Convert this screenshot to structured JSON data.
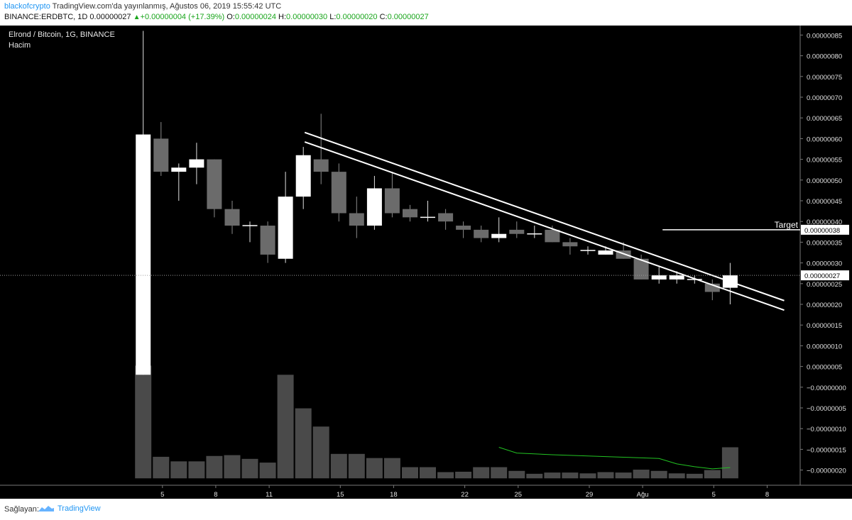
{
  "header": {
    "author": "blackofcrypto",
    "published": "TradingView.com'da yayınlanmış, Ağustos 06, 2019 15:55:42 UTC",
    "symbol": "BINANCE:ERDBTC, 1D",
    "last": "0.00000027",
    "change": "+0.00000004 (+17.39%)",
    "o_label": "O:",
    "o": "0.00000024",
    "h_label": "H:",
    "h": "0.00000030",
    "l_label": "L:",
    "l": "0.00000020",
    "c_label": "C:",
    "c": "0.00000027"
  },
  "footer": {
    "provided_by": "Sağlayan:",
    "brand": "TradingView"
  },
  "colors": {
    "background": "#000000",
    "bull": "#ffffff",
    "bear": "#6b6b6b",
    "volume": "#4a4a4a",
    "volume_ma": "#22c322",
    "positive": "#19a51b",
    "author": "#2196f3"
  },
  "chart_data": {
    "type": "candlestick",
    "title": "Elrond / Bitcoin, 1G, BINANCE",
    "subtitle": "Hacim",
    "ylim": [
      -2.2e-07,
      8.7e-07
    ],
    "y_ticks": [
      "0.00000085",
      "0.00000080",
      "0.00000075",
      "0.00000070",
      "0.00000065",
      "0.00000060",
      "0.00000055",
      "0.00000050",
      "0.00000045",
      "0.00000040",
      "0.00000035",
      "0.00000030",
      "0.00000025",
      "0.00000020",
      "0.00000015",
      "0.00000010",
      "0.00000005",
      "−0.00000000",
      "−0.00000005",
      "−0.00000010",
      "−0.00000015",
      "−0.00000020"
    ],
    "y_tick_values": [
      8.5e-07,
      8e-07,
      7.5e-07,
      7e-07,
      6.5e-07,
      6e-07,
      5.5e-07,
      5e-07,
      4.5e-07,
      4e-07,
      3.5e-07,
      3e-07,
      2.5e-07,
      2e-07,
      1.5e-07,
      1e-07,
      5e-08,
      0,
      -5e-08,
      -1e-07,
      -1.5e-07,
      -2e-07
    ],
    "x_tick_labels": [
      {
        "day": 5,
        "label": "5"
      },
      {
        "day": 8,
        "label": "8"
      },
      {
        "day": 11,
        "label": "11"
      },
      {
        "day": 15,
        "label": "15"
      },
      {
        "day": 18,
        "label": "18"
      },
      {
        "day": 22,
        "label": "22"
      },
      {
        "day": 25,
        "label": "25"
      },
      {
        "day": 29,
        "label": "29"
      },
      {
        "day": 32,
        "label": "Ağu"
      },
      {
        "day": 36,
        "label": "5"
      },
      {
        "day": 39,
        "label": "8"
      }
    ],
    "candles": [
      {
        "day": 4,
        "o": 3e-08,
        "h": 8.6e-07,
        "l": 3e-08,
        "c": 6.1e-07
      },
      {
        "day": 5,
        "o": 6e-07,
        "h": 6.4e-07,
        "l": 5.1e-07,
        "c": 5.2e-07
      },
      {
        "day": 6,
        "o": 5.2e-07,
        "h": 5.4e-07,
        "l": 4.5e-07,
        "c": 5.3e-07
      },
      {
        "day": 7,
        "o": 5.3e-07,
        "h": 5.9e-07,
        "l": 4.9e-07,
        "c": 5.5e-07
      },
      {
        "day": 8,
        "o": 5.5e-07,
        "h": 5.5e-07,
        "l": 4.1e-07,
        "c": 4.3e-07
      },
      {
        "day": 9,
        "o": 4.3e-07,
        "h": 4.5e-07,
        "l": 3.7e-07,
        "c": 3.9e-07
      },
      {
        "day": 10,
        "o": 3.9e-07,
        "h": 4e-07,
        "l": 3.5e-07,
        "c": 3.9e-07
      },
      {
        "day": 11,
        "o": 3.9e-07,
        "h": 4e-07,
        "l": 3e-07,
        "c": 3.2e-07
      },
      {
        "day": 12,
        "o": 3.1e-07,
        "h": 5.2e-07,
        "l": 3e-07,
        "c": 4.6e-07
      },
      {
        "day": 13,
        "o": 4.6e-07,
        "h": 5.8e-07,
        "l": 4.3e-07,
        "c": 5.6e-07
      },
      {
        "day": 14,
        "o": 5.5e-07,
        "h": 6.6e-07,
        "l": 4.9e-07,
        "c": 5.2e-07
      },
      {
        "day": 15,
        "o": 5.2e-07,
        "h": 5.4e-07,
        "l": 4e-07,
        "c": 4.2e-07
      },
      {
        "day": 16,
        "o": 4.2e-07,
        "h": 4.6e-07,
        "l": 3.6e-07,
        "c": 3.9e-07
      },
      {
        "day": 17,
        "o": 3.9e-07,
        "h": 5.1e-07,
        "l": 3.8e-07,
        "c": 4.8e-07
      },
      {
        "day": 18,
        "o": 4.8e-07,
        "h": 5.2e-07,
        "l": 4.1e-07,
        "c": 4.2e-07
      },
      {
        "day": 19,
        "o": 4.3e-07,
        "h": 4.4e-07,
        "l": 4e-07,
        "c": 4.1e-07
      },
      {
        "day": 20,
        "o": 4.1e-07,
        "h": 4.5e-07,
        "l": 4e-07,
        "c": 4.1e-07
      },
      {
        "day": 21,
        "o": 4.2e-07,
        "h": 4.3e-07,
        "l": 3.8e-07,
        "c": 4e-07
      },
      {
        "day": 22,
        "o": 3.9e-07,
        "h": 4e-07,
        "l": 3.6e-07,
        "c": 3.8e-07
      },
      {
        "day": 23,
        "o": 3.8e-07,
        "h": 3.9e-07,
        "l": 3.5e-07,
        "c": 3.6e-07
      },
      {
        "day": 24,
        "o": 3.6e-07,
        "h": 4.1e-07,
        "l": 3.5e-07,
        "c": 3.7e-07
      },
      {
        "day": 25,
        "o": 3.8e-07,
        "h": 4e-07,
        "l": 3.6e-07,
        "c": 3.7e-07
      },
      {
        "day": 26,
        "o": 3.7e-07,
        "h": 3.9e-07,
        "l": 3.6e-07,
        "c": 3.7e-07
      },
      {
        "day": 27,
        "o": 3.8e-07,
        "h": 3.9e-07,
        "l": 3.5e-07,
        "c": 3.5e-07
      },
      {
        "day": 28,
        "o": 3.5e-07,
        "h": 3.6e-07,
        "l": 3.2e-07,
        "c": 3.4e-07
      },
      {
        "day": 29,
        "o": 3.3e-07,
        "h": 3.4e-07,
        "l": 3.2e-07,
        "c": 3.3e-07
      },
      {
        "day": 30,
        "o": 3.2e-07,
        "h": 3.4e-07,
        "l": 3.2e-07,
        "c": 3.3e-07
      },
      {
        "day": 31,
        "o": 3.3e-07,
        "h": 3.5e-07,
        "l": 3.1e-07,
        "c": 3.1e-07
      },
      {
        "day": 32,
        "o": 3.1e-07,
        "h": 3.2e-07,
        "l": 2.6e-07,
        "c": 2.6e-07
      },
      {
        "day": 33,
        "o": 2.6e-07,
        "h": 2.9e-07,
        "l": 2.5e-07,
        "c": 2.7e-07
      },
      {
        "day": 34,
        "o": 2.6e-07,
        "h": 2.8e-07,
        "l": 2.5e-07,
        "c": 2.7e-07
      },
      {
        "day": 35,
        "o": 2.6e-07,
        "h": 2.7e-07,
        "l": 2.5e-07,
        "c": 2.6e-07
      },
      {
        "day": 36,
        "o": 2.5e-07,
        "h": 2.6e-07,
        "l": 2.1e-07,
        "c": 2.3e-07
      },
      {
        "day": 37,
        "o": 2.4e-07,
        "h": 3e-07,
        "l": 2e-07,
        "c": 2.7e-07
      }
    ],
    "volume_bottom": -2.2e-07,
    "volume": [
      {
        "day": 4,
        "top": 5.2e-08
      },
      {
        "day": 5,
        "top": -1.68e-07
      },
      {
        "day": 6,
        "top": -1.79e-07
      },
      {
        "day": 7,
        "top": -1.79e-07
      },
      {
        "day": 8,
        "top": -1.66e-07
      },
      {
        "day": 9,
        "top": -1.64e-07
      },
      {
        "day": 10,
        "top": -1.73e-07
      },
      {
        "day": 11,
        "top": -1.82e-07
      },
      {
        "day": 12,
        "top": 3e-08
      },
      {
        "day": 13,
        "top": -5.1e-08
      },
      {
        "day": 14,
        "top": -9.5e-08
      },
      {
        "day": 15,
        "top": -1.61e-07
      },
      {
        "day": 16,
        "top": -1.61e-07
      },
      {
        "day": 17,
        "top": -1.71e-07
      },
      {
        "day": 18,
        "top": -1.71e-07
      },
      {
        "day": 19,
        "top": -1.93e-07
      },
      {
        "day": 20,
        "top": -1.93e-07
      },
      {
        "day": 21,
        "top": -2.05e-07
      },
      {
        "day": 22,
        "top": -2.04e-07
      },
      {
        "day": 23,
        "top": -1.93e-07
      },
      {
        "day": 24,
        "top": -1.93e-07
      },
      {
        "day": 25,
        "top": -2.02e-07
      },
      {
        "day": 26,
        "top": -2.09e-07
      },
      {
        "day": 27,
        "top": -2.06e-07
      },
      {
        "day": 28,
        "top": -2.06e-07
      },
      {
        "day": 29,
        "top": -2.08e-07
      },
      {
        "day": 30,
        "top": -2.05e-07
      },
      {
        "day": 31,
        "top": -2.06e-07
      },
      {
        "day": 32,
        "top": -1.99e-07
      },
      {
        "day": 33,
        "top": -2.02e-07
      },
      {
        "day": 34,
        "top": -2.08e-07
      },
      {
        "day": 35,
        "top": -2.09e-07
      },
      {
        "day": 36,
        "top": -2e-07
      },
      {
        "day": 37,
        "top": -1.45e-07
      }
    ],
    "volume_ma": [
      {
        "day": 24,
        "y": -1.45e-07
      },
      {
        "day": 25,
        "y": -1.59e-07
      },
      {
        "day": 27,
        "y": -1.63e-07
      },
      {
        "day": 29,
        "y": -1.66e-07
      },
      {
        "day": 31,
        "y": -1.69e-07
      },
      {
        "day": 33,
        "y": -1.72e-07
      },
      {
        "day": 34,
        "y": -1.85e-07
      },
      {
        "day": 35,
        "y": -1.92e-07
      },
      {
        "day": 36,
        "y": -1.97e-07
      },
      {
        "day": 37,
        "y": -1.94e-07
      }
    ],
    "trendlines": [
      {
        "x1": 13,
        "y1": 6.15e-07,
        "x2": 40,
        "y2": 2.09e-07
      },
      {
        "x1": 13,
        "y1": 5.92e-07,
        "x2": 40,
        "y2": 1.86e-07
      }
    ],
    "target": {
      "label": "Target",
      "value": 3.8e-07,
      "from_day": 33,
      "price_label": "0.00000038"
    },
    "last_price": {
      "value": 2.7e-07,
      "label": "0.00000027"
    }
  }
}
